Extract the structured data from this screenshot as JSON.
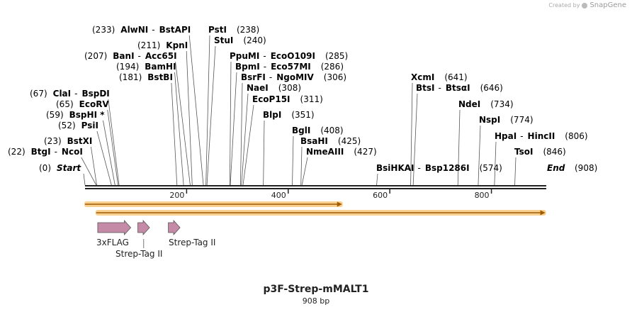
{
  "credit": {
    "created_by": "Created by",
    "brand": "SnapGene"
  },
  "title": "p3F-Strep-mMALT1",
  "subtitle": "908 bp",
  "sequence_length": 908,
  "colors": {
    "feature": "#c48aa6",
    "orf_fill": "#f5c06a",
    "orf_arrow": "#a05a00",
    "backbone": "#222222"
  },
  "ticks": [
    200,
    400,
    600,
    800
  ],
  "ends": {
    "start": {
      "pos": "(0)",
      "name": "Start",
      "bp": 0
    },
    "end": {
      "name": "End",
      "pos": "(908)",
      "bp": 908
    }
  },
  "sites": [
    {
      "pos": "(233)",
      "names": [
        "AlwNI",
        "BstAPI"
      ],
      "bp": 233
    },
    {
      "pos": "(238)",
      "names": [
        "PstI"
      ],
      "bp": 238
    },
    {
      "pos": "(240)",
      "names": [
        "StuI"
      ],
      "bp": 240
    },
    {
      "pos": "(211)",
      "names": [
        "KpnI"
      ],
      "bp": 211
    },
    {
      "pos": "(207)",
      "names": [
        "BanI",
        "Acc65I"
      ],
      "bp": 207
    },
    {
      "pos": "(285)",
      "names": [
        "PpuMI",
        "EcoO109I"
      ],
      "bp": 285
    },
    {
      "pos": "(194)",
      "names": [
        "BamHI"
      ],
      "bp": 194
    },
    {
      "pos": "(286)",
      "names": [
        "BpmI",
        "Eco57MI"
      ],
      "bp": 286
    },
    {
      "pos": "(181)",
      "names": [
        "BstBI"
      ],
      "bp": 181
    },
    {
      "pos": "(306)",
      "names": [
        "BsrFI",
        "NgoMIV"
      ],
      "bp": 306
    },
    {
      "pos": "(308)",
      "names": [
        "NaeI"
      ],
      "bp": 308
    },
    {
      "pos": "(67)",
      "names": [
        "ClaI",
        "BspDI"
      ],
      "bp": 67
    },
    {
      "pos": "(311)",
      "names": [
        "EcoP15I"
      ],
      "bp": 311
    },
    {
      "pos": "(65)",
      "names": [
        "EcoRV"
      ],
      "bp": 65
    },
    {
      "pos": "(59)",
      "names": [
        "BspHI *"
      ],
      "bp": 59
    },
    {
      "pos": "(351)",
      "names": [
        "BlpI"
      ],
      "bp": 351
    },
    {
      "pos": "(52)",
      "names": [
        "PsiI"
      ],
      "bp": 52
    },
    {
      "pos": "(408)",
      "names": [
        "BglI"
      ],
      "bp": 408
    },
    {
      "pos": "(23)",
      "names": [
        "BstXI"
      ],
      "bp": 23
    },
    {
      "pos": "(425)",
      "names": [
        "BsaHI"
      ],
      "bp": 425
    },
    {
      "pos": "(22)",
      "names": [
        "BtgI",
        "NcoI"
      ],
      "bp": 22
    },
    {
      "pos": "(427)",
      "names": [
        "NmeAIII"
      ],
      "bp": 427
    },
    {
      "pos": "(641)",
      "names": [
        "XcmI"
      ],
      "bp": 641
    },
    {
      "pos": "(646)",
      "names": [
        "BtsI",
        "BtsαI"
      ],
      "bp": 646
    },
    {
      "pos": "(734)",
      "names": [
        "NdeI"
      ],
      "bp": 734
    },
    {
      "pos": "(774)",
      "names": [
        "NspI"
      ],
      "bp": 774
    },
    {
      "pos": "(806)",
      "names": [
        "HpaI",
        "HincII"
      ],
      "bp": 806
    },
    {
      "pos": "(846)",
      "names": [
        "TsoI"
      ],
      "bp": 846
    },
    {
      "pos": "(574)",
      "names": [
        "BsiHKAI",
        "Bsp1286I"
      ],
      "bp": 574
    }
  ],
  "orfs": [
    {
      "start_bp": 0,
      "end_bp": 506
    },
    {
      "start_bp": 22,
      "end_bp": 906
    }
  ],
  "features": [
    {
      "label": "3xFLAG",
      "start_bp": 25,
      "end_bp": 90
    },
    {
      "label": "Strep-Tag II",
      "start_bp": 104,
      "end_bp": 127
    },
    {
      "label": "Strep-Tag II",
      "start_bp": 164,
      "end_bp": 187
    }
  ]
}
